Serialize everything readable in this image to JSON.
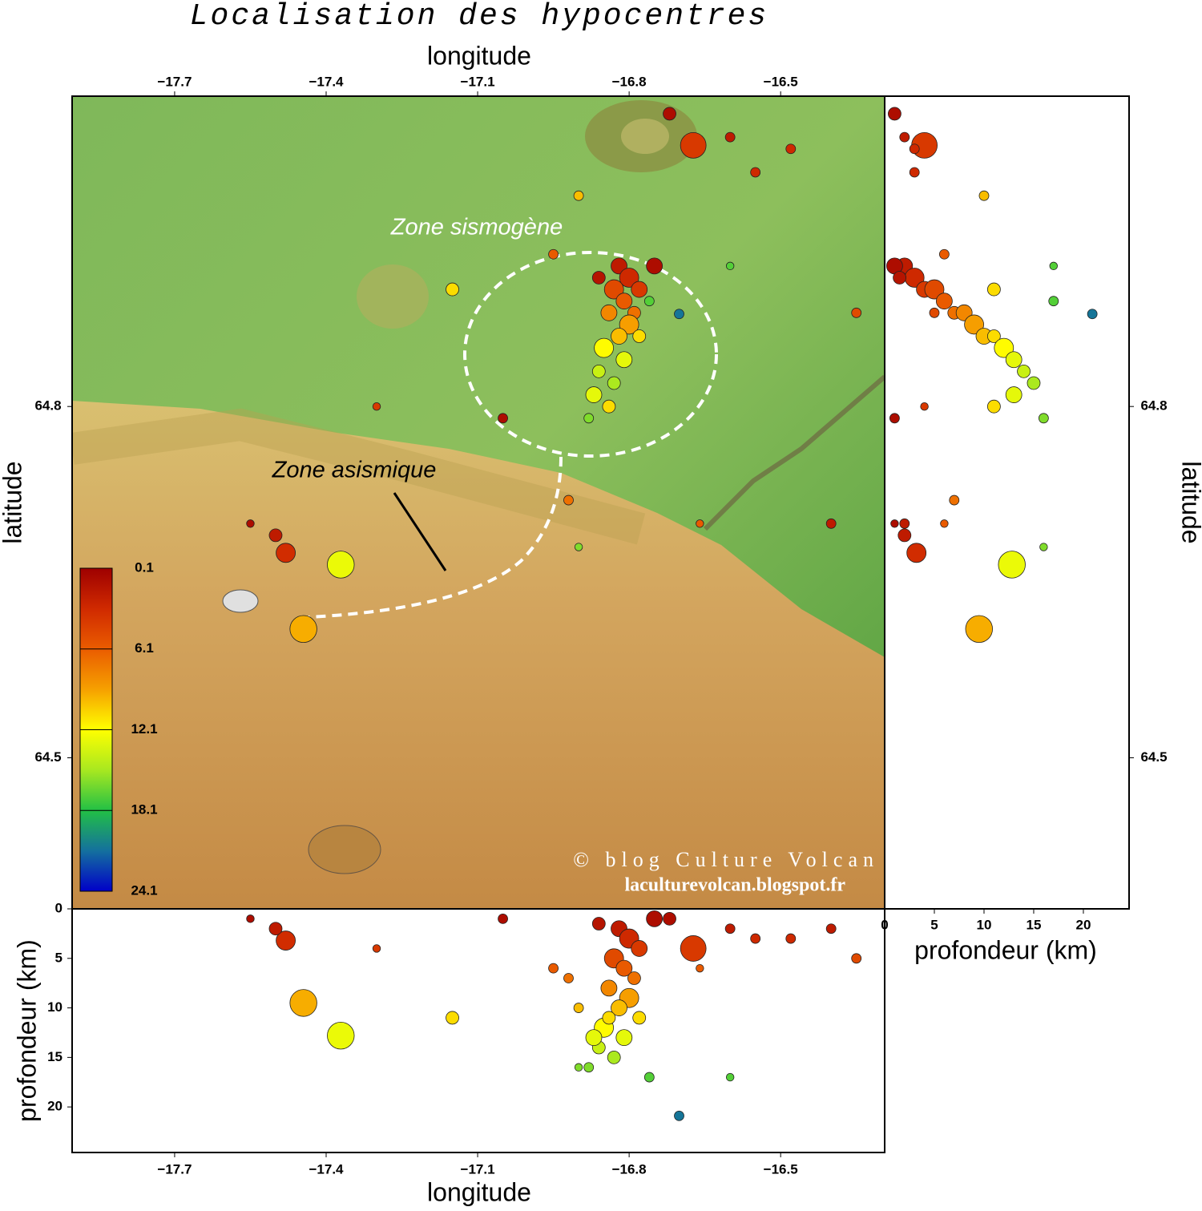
{
  "title": "Localisation des hypocentres",
  "map": {
    "xlabel": "longitude",
    "ylabel": "latitude",
    "xlim": [
      -17.903,
      -16.294
    ],
    "ylim": [
      64.371,
      65.065
    ],
    "xticks": [
      {
        "value": -17.7,
        "label": "−17.7"
      },
      {
        "value": -17.4,
        "label": "−17.4"
      },
      {
        "value": -17.1,
        "label": "−17.1"
      },
      {
        "value": -16.8,
        "label": "−16.8"
      },
      {
        "value": -16.5,
        "label": "−16.5"
      }
    ],
    "yticks": [
      64.5,
      64.8
    ]
  },
  "depth_axis": {
    "label": "profondeur (km)",
    "lim": [
      0,
      24.6
    ],
    "ticks": [
      0,
      5,
      10,
      15,
      20
    ]
  },
  "colorbar": {
    "lim": [
      0.1,
      24.1
    ],
    "ticks": [
      0.1,
      6.1,
      12.1,
      18.1,
      24.1
    ],
    "colors": [
      "#9e0000",
      "#d02a00",
      "#ea5c00",
      "#f6a000",
      "#ffff00",
      "#a8e820",
      "#22c045",
      "#14709e",
      "#0000c8"
    ]
  },
  "hypocenters": {
    "lon": [
      -16.673,
      -17.371,
      -17.445,
      -17.48,
      -17.5,
      -16.701,
      -16.82,
      -16.8,
      -16.78,
      -16.83,
      -16.81,
      -16.79,
      -16.84,
      -16.8,
      -16.82,
      -16.78,
      -16.85,
      -16.81,
      -16.86,
      -16.83,
      -16.87,
      -16.84,
      -16.88,
      -16.76,
      -16.75,
      -16.86,
      -16.9,
      -16.72,
      -16.6,
      -16.55,
      -16.95,
      -17.15,
      -17.05,
      -16.92,
      -16.9,
      -16.4,
      -16.35,
      -16.6,
      -16.48,
      -17.55,
      -17.3,
      -16.66
    ],
    "lat": [
      65.023,
      64.665,
      64.61,
      64.675,
      64.69,
      64.879,
      64.92,
      64.91,
      64.9,
      64.9,
      64.89,
      64.88,
      64.88,
      64.87,
      64.86,
      64.86,
      64.85,
      64.84,
      64.83,
      64.82,
      64.81,
      64.8,
      64.79,
      64.89,
      64.92,
      64.91,
      64.98,
      65.05,
      65.03,
      65.0,
      64.93,
      64.9,
      64.79,
      64.72,
      64.68,
      64.7,
      64.88,
      64.92,
      65.02,
      64.7,
      64.8,
      64.7
    ],
    "depth": [
      4,
      12.8,
      9.5,
      3.2,
      2,
      20.9,
      2,
      3,
      4,
      5,
      6,
      7,
      8,
      9,
      10,
      11,
      12,
      13,
      14,
      15,
      13,
      11,
      16,
      17,
      1,
      1.5,
      10,
      1,
      2,
      3,
      6,
      11,
      1,
      7,
      16,
      2,
      5,
      17,
      3,
      1,
      4,
      6
    ],
    "magnitude": [
      4,
      4.2,
      4.2,
      3,
      2,
      1.5,
      2.5,
      3,
      2.5,
      3,
      2.5,
      2,
      2.5,
      3,
      2.5,
      2,
      3,
      2.5,
      2,
      2,
      2.5,
      2,
      1.5,
      1.5,
      2.5,
      2,
      1.5,
      2,
      1.5,
      1.5,
      1.5,
      2,
      1.5,
      1.5,
      1.2,
      1.5,
      1.5,
      1.2,
      1.5,
      1.2,
      1.2,
      1.2
    ]
  },
  "annotations": {
    "seismogenic_zone": "Zone sismogène",
    "aseismic_zone": "Zone asismique"
  },
  "credit": [
    "© blog Culture Volcan",
    "laculturevolcan.blogspot.fr"
  ]
}
